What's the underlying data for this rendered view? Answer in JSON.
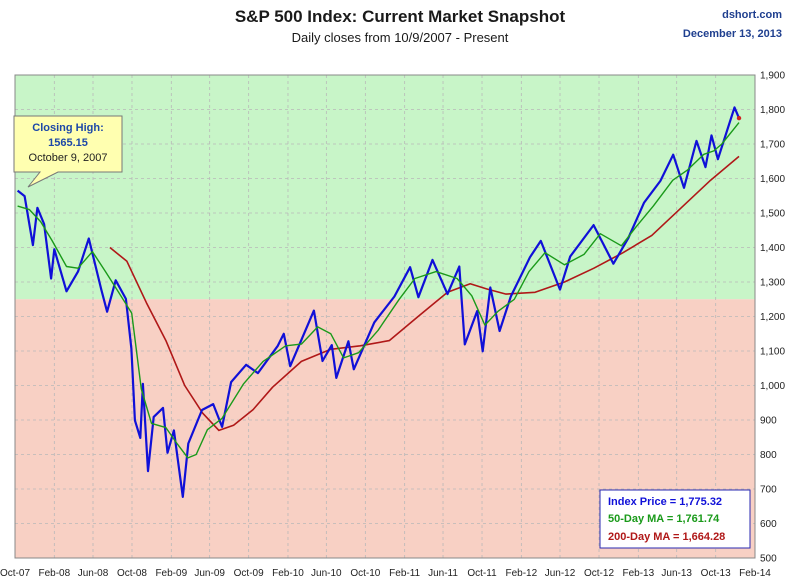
{
  "chart_data": {
    "type": "line",
    "title": "S&P 500 Index: Current Market Snapshot",
    "subtitle": "Daily closes from 10/9/2007 - Present",
    "source": "dshort.com",
    "date": "December 13, 2013",
    "ylim": [
      500,
      1900
    ],
    "y_ticks": [
      "500",
      "600",
      "700",
      "800",
      "900",
      "1,000",
      "1,100",
      "1,200",
      "1,300",
      "1,400",
      "1,500",
      "1,600",
      "1,700",
      "1,800",
      "1,900"
    ],
    "x_ticks": [
      "Oct-07",
      "Feb-08",
      "Jun-08",
      "Oct-08",
      "Feb-09",
      "Jun-09",
      "Oct-09",
      "Feb-10",
      "Jun-10",
      "Oct-10",
      "Feb-11",
      "Jun-11",
      "Oct-11",
      "Feb-12",
      "Jun-12",
      "Oct-12",
      "Feb-13",
      "Jun-13",
      "Oct-13",
      "Feb-14"
    ],
    "x_range": [
      "2007-10-01",
      "2014-02-01"
    ],
    "zones": {
      "upper_color": "#c8f5c8",
      "lower_color": "#f8d0c4",
      "boundary": 1250
    },
    "grid": true,
    "series": [
      {
        "color": "#1010d8",
        "points": [
          [
            "2007-10-09",
            1565
          ],
          [
            "2007-10-31",
            1549
          ],
          [
            "2007-11-26",
            1407
          ],
          [
            "2007-12-10",
            1515
          ],
          [
            "2007-12-31",
            1468
          ],
          [
            "2008-01-22",
            1310
          ],
          [
            "2008-02-01",
            1395
          ],
          [
            "2008-03-10",
            1273
          ],
          [
            "2008-04-15",
            1330
          ],
          [
            "2008-05-19",
            1426
          ],
          [
            "2008-06-27",
            1278
          ],
          [
            "2008-07-15",
            1214
          ],
          [
            "2008-08-11",
            1305
          ],
          [
            "2008-09-12",
            1251
          ],
          [
            "2008-09-29",
            1106
          ],
          [
            "2008-10-10",
            899
          ],
          [
            "2008-10-27",
            848
          ],
          [
            "2008-11-04",
            1005
          ],
          [
            "2008-11-20",
            752
          ],
          [
            "2008-12-08",
            909
          ],
          [
            "2009-01-06",
            935
          ],
          [
            "2009-01-20",
            805
          ],
          [
            "2009-02-09",
            870
          ],
          [
            "2009-03-09",
            677
          ],
          [
            "2009-03-26",
            832
          ],
          [
            "2009-05-08",
            929
          ],
          [
            "2009-06-12",
            946
          ],
          [
            "2009-07-10",
            880
          ],
          [
            "2009-08-07",
            1010
          ],
          [
            "2009-09-23",
            1060
          ],
          [
            "2009-10-30",
            1036
          ],
          [
            "2009-12-31",
            1115
          ],
          [
            "2010-01-19",
            1150
          ],
          [
            "2010-02-08",
            1056
          ],
          [
            "2010-04-23",
            1217
          ],
          [
            "2010-05-20",
            1071
          ],
          [
            "2010-06-18",
            1117
          ],
          [
            "2010-07-02",
            1022
          ],
          [
            "2010-08-09",
            1128
          ],
          [
            "2010-08-26",
            1047
          ],
          [
            "2010-10-29",
            1183
          ],
          [
            "2010-12-31",
            1258
          ],
          [
            "2011-02-18",
            1343
          ],
          [
            "2011-03-16",
            1256
          ],
          [
            "2011-04-29",
            1364
          ],
          [
            "2011-06-15",
            1265
          ],
          [
            "2011-07-22",
            1345
          ],
          [
            "2011-08-08",
            1119
          ],
          [
            "2011-09-16",
            1216
          ],
          [
            "2011-10-03",
            1099
          ],
          [
            "2011-10-27",
            1284
          ],
          [
            "2011-11-25",
            1158
          ],
          [
            "2011-12-30",
            1258
          ],
          [
            "2012-02-28",
            1372
          ],
          [
            "2012-04-02",
            1419
          ],
          [
            "2012-06-01",
            1278
          ],
          [
            "2012-07-03",
            1374
          ],
          [
            "2012-09-14",
            1465
          ],
          [
            "2012-11-15",
            1353
          ],
          [
            "2012-12-31",
            1426
          ],
          [
            "2013-02-19",
            1530
          ],
          [
            "2013-04-11",
            1593
          ],
          [
            "2013-05-21",
            1669
          ],
          [
            "2013-06-24",
            1573
          ],
          [
            "2013-08-02",
            1709
          ],
          [
            "2013-08-30",
            1633
          ],
          [
            "2013-09-18",
            1725
          ],
          [
            "2013-10-08",
            1656
          ],
          [
            "2013-11-29",
            1806
          ],
          [
            "2013-12-13",
            1775
          ]
        ]
      },
      {
        "color": "#1a9a1a",
        "points": [
          [
            "2007-10-09",
            1520
          ],
          [
            "2007-11-15",
            1510
          ],
          [
            "2007-12-20",
            1475
          ],
          [
            "2008-01-25",
            1420
          ],
          [
            "2008-03-10",
            1345
          ],
          [
            "2008-04-15",
            1340
          ],
          [
            "2008-05-30",
            1388
          ],
          [
            "2008-07-10",
            1330
          ],
          [
            "2008-08-20",
            1270
          ],
          [
            "2008-09-30",
            1210
          ],
          [
            "2008-10-30",
            990
          ],
          [
            "2008-12-01",
            890
          ],
          [
            "2009-01-15",
            878
          ],
          [
            "2009-02-20",
            830
          ],
          [
            "2009-03-25",
            790
          ],
          [
            "2009-04-20",
            800
          ],
          [
            "2009-05-25",
            872
          ],
          [
            "2009-07-10",
            905
          ],
          [
            "2009-09-15",
            1005
          ],
          [
            "2009-11-15",
            1070
          ],
          [
            "2010-01-25",
            1115
          ],
          [
            "2010-03-15",
            1120
          ],
          [
            "2010-05-05",
            1170
          ],
          [
            "2010-06-15",
            1150
          ],
          [
            "2010-07-25",
            1080
          ],
          [
            "2010-09-10",
            1095
          ],
          [
            "2010-11-10",
            1160
          ],
          [
            "2011-01-15",
            1250
          ],
          [
            "2011-03-05",
            1310
          ],
          [
            "2011-05-10",
            1330
          ],
          [
            "2011-07-15",
            1310
          ],
          [
            "2011-08-30",
            1260
          ],
          [
            "2011-10-10",
            1175
          ],
          [
            "2011-11-20",
            1215
          ],
          [
            "2012-01-10",
            1250
          ],
          [
            "2012-02-25",
            1330
          ],
          [
            "2012-04-15",
            1385
          ],
          [
            "2012-06-15",
            1350
          ],
          [
            "2012-08-15",
            1380
          ],
          [
            "2012-10-05",
            1440
          ],
          [
            "2012-12-10",
            1405
          ],
          [
            "2013-01-25",
            1460
          ],
          [
            "2013-03-20",
            1520
          ],
          [
            "2013-05-20",
            1595
          ],
          [
            "2013-07-05",
            1625
          ],
          [
            "2013-08-25",
            1670
          ],
          [
            "2013-09-25",
            1680
          ],
          [
            "2013-10-20",
            1700
          ],
          [
            "2013-12-13",
            1762
          ]
        ]
      },
      {
        "color": "#b01818",
        "points": [
          [
            "2008-07-24",
            1400
          ],
          [
            "2008-09-15",
            1360
          ],
          [
            "2008-11-15",
            1240
          ],
          [
            "2009-01-15",
            1130
          ],
          [
            "2009-03-15",
            1000
          ],
          [
            "2009-05-10",
            920
          ],
          [
            "2009-06-30",
            870
          ],
          [
            "2009-08-15",
            885
          ],
          [
            "2009-10-15",
            930
          ],
          [
            "2009-12-15",
            995
          ],
          [
            "2010-03-15",
            1070
          ],
          [
            "2010-06-15",
            1105
          ],
          [
            "2010-09-15",
            1115
          ],
          [
            "2010-12-15",
            1130
          ],
          [
            "2011-03-15",
            1200
          ],
          [
            "2011-06-15",
            1270
          ],
          [
            "2011-08-25",
            1295
          ],
          [
            "2011-10-15",
            1280
          ],
          [
            "2011-12-15",
            1265
          ],
          [
            "2012-03-15",
            1270
          ],
          [
            "2012-06-15",
            1300
          ],
          [
            "2012-09-15",
            1340
          ],
          [
            "2012-12-15",
            1385
          ],
          [
            "2013-03-15",
            1435
          ],
          [
            "2013-06-15",
            1515
          ],
          [
            "2013-09-15",
            1595
          ],
          [
            "2013-12-13",
            1664
          ]
        ]
      }
    ],
    "callout": {
      "line1": "Closing High:",
      "line2": "1565.15",
      "line3": "October 9, 2007"
    },
    "legend": [
      {
        "text": "Index Price =  1,775.32",
        "color": "#1010d8"
      },
      {
        "text": "50-Day MA =  1,761.74",
        "color": "#1a9a1a"
      },
      {
        "text": "200-Day MA = 1,664.28",
        "color": "#b01818"
      }
    ]
  }
}
